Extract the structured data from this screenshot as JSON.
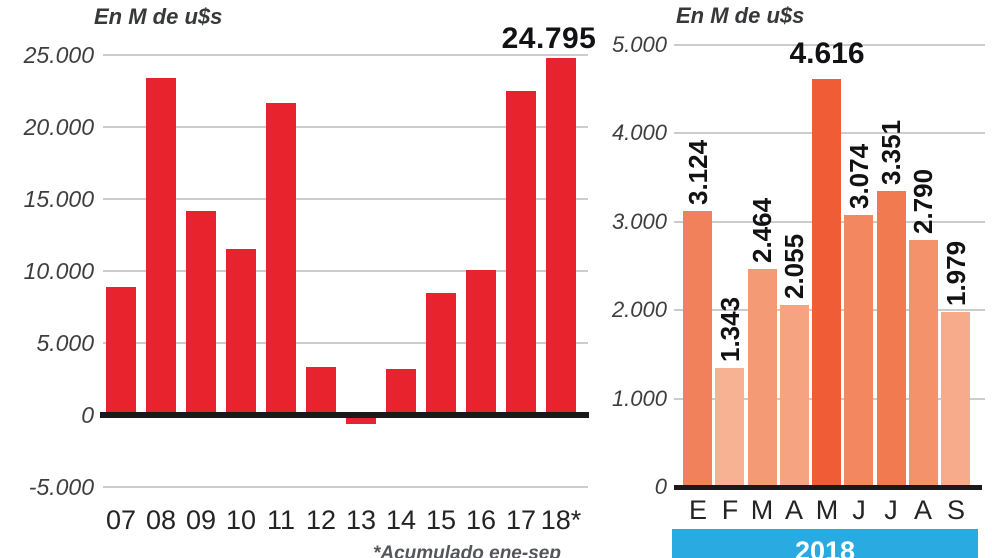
{
  "colors": {
    "bar_red": "#e8232e",
    "gridline_gray": "#cbcccd",
    "axis_black": "#1a1a1a",
    "banner_blue": "#29abe2",
    "banner_text": "#ffffff",
    "value_label_black": "#121214",
    "ytick_gray": "#3d3e40",
    "xtick_dark": "#242426",
    "footnote_gray": "#55565b"
  },
  "chart_data": [
    {
      "id": "annual-bars",
      "type": "bar",
      "title": "En M de u$s",
      "categories": [
        "07",
        "08",
        "09",
        "10",
        "11",
        "12",
        "13",
        "14",
        "15",
        "16",
        "17",
        "18*"
      ],
      "values": [
        8900,
        23400,
        14200,
        11500,
        21700,
        3300,
        -650,
        3200,
        8500,
        10100,
        22500,
        24795
      ],
      "bar_color": "#e8232e",
      "ytick_labels": [
        "25.000",
        "20.000",
        "15.000",
        "10.000",
        "5.000",
        "0",
        "-5.000"
      ],
      "ytick_values": [
        25000,
        20000,
        15000,
        10000,
        5000,
        0,
        -5000
      ],
      "ylim": [
        -5000,
        26000
      ],
      "grid": true,
      "legend": "none",
      "annotation": {
        "text": "24.795",
        "category": "18*"
      },
      "footnote": "*Acumulado ene-sep"
    },
    {
      "id": "monthly-2018-bars",
      "type": "bar",
      "title": "En M de u$s",
      "categories": [
        "E",
        "F",
        "M",
        "A",
        "M",
        "J",
        "J",
        "A",
        "S"
      ],
      "values": [
        3124,
        1343,
        2464,
        2055,
        4616,
        3074,
        3351,
        2790,
        1979
      ],
      "value_labels": [
        "3.124",
        "1.343",
        "2.464",
        "2.055",
        "4.616",
        "3.074",
        "3.351",
        "2.790",
        "1.979"
      ],
      "bar_colors": [
        "#f1815a",
        "#f7b193",
        "#f49a75",
        "#f5a381",
        "#ef5c35",
        "#f3875f",
        "#f17a50",
        "#f4926c",
        "#f7ab8b"
      ],
      "ytick_labels": [
        "5.000",
        "4.000",
        "3.000",
        "2.000",
        "1.000",
        "0"
      ],
      "ytick_values": [
        5000,
        4000,
        3000,
        2000,
        1000,
        0
      ],
      "ylim": [
        0,
        5000
      ],
      "grid": true,
      "legend": "none",
      "highlight_label_index": 4,
      "banner": "2018"
    }
  ]
}
